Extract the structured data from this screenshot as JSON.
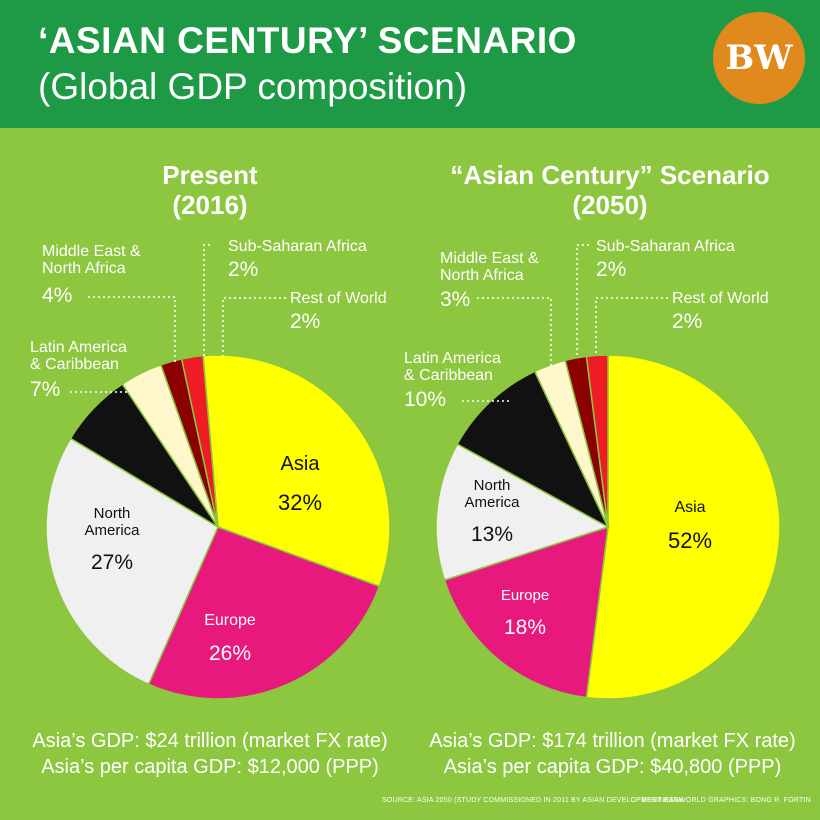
{
  "header": {
    "title": "‘ASIAN CENTURY’ SCENARIO",
    "subtitle": "(Global GDP composition)",
    "logo": "BW",
    "colors": {
      "banner": "#1e9a47",
      "background": "#8dc63f",
      "logo": "#e08a1e"
    }
  },
  "chart_data": [
    {
      "type": "pie",
      "title_line1": "Present",
      "title_line2": "(2016)",
      "slices": [
        {
          "name": "Asia",
          "value": 32,
          "label": "32%",
          "color": "#ffff00"
        },
        {
          "name": "Europe",
          "value": 26,
          "label": "26%",
          "color": "#e8197d"
        },
        {
          "name_line1": "North",
          "name_line2": "America",
          "value": 27,
          "label": "27%",
          "color": "#f0f0f0"
        },
        {
          "name_line1": "Latin America",
          "name_line2": "& Caribbean",
          "value": 7,
          "label": "7%",
          "color": "#111111"
        },
        {
          "name_line1": "Middle East &",
          "name_line2": "North Africa",
          "value": 4,
          "label": "4%",
          "color": "#fff7cc"
        },
        {
          "name": "Sub-Saharan Africa",
          "value": 2,
          "label": "2%",
          "color": "#8b0000"
        },
        {
          "name": "Rest of World",
          "value": 2,
          "label": "2%",
          "color": "#ee1c25"
        }
      ],
      "gdp": "Asia’s GDP: $24 trillion (market FX rate)",
      "per_capita": "Asia’s per capita GDP: $12,000 (PPP)"
    },
    {
      "type": "pie",
      "title_line1": "“Asian Century” Scenario",
      "title_line2": "(2050)",
      "slices": [
        {
          "name": "Asia",
          "value": 52,
          "label": "52%",
          "color": "#ffff00"
        },
        {
          "name": "Europe",
          "value": 18,
          "label": "18%",
          "color": "#e8197d"
        },
        {
          "name_line1": "North",
          "name_line2": "America",
          "value": 13,
          "label": "13%",
          "color": "#f0f0f0"
        },
        {
          "name_line1": "Latin America",
          "name_line2": "& Caribbean",
          "value": 10,
          "label": "10%",
          "color": "#111111"
        },
        {
          "name_line1": "Middle East &",
          "name_line2": "North Africa",
          "value": 3,
          "label": "3%",
          "color": "#fff7cc"
        },
        {
          "name": "Sub-Saharan Africa",
          "value": 2,
          "label": "2%",
          "color": "#8b0000"
        },
        {
          "name": "Rest of World",
          "value": 2,
          "label": "2%",
          "color": "#ee1c25"
        }
      ],
      "gdp": "Asia’s GDP: $174 trillion (market FX rate)",
      "per_capita": "Asia’s per capita GDP: $40,800 (PPP)"
    }
  ],
  "footer": {
    "source": "SOURCE: ASIA 2050 (STUDY COMMISSIONED IN 2011 BY ASIAN DEVELOPMENT BANK",
    "credit": "BUSINESSWORLD GRAPHICS: BONG R. FORTIN"
  }
}
